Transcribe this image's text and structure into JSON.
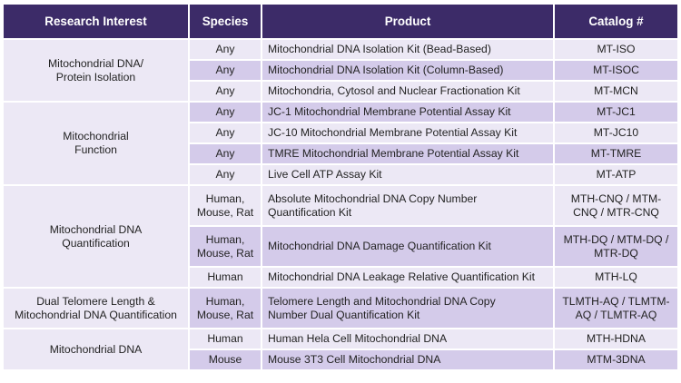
{
  "headers": {
    "research_interest": "Research Interest",
    "species": "Species",
    "product": "Product",
    "catalog": "Catalog #"
  },
  "groups": [
    {
      "name_line1": "Mitochondrial DNA/",
      "name_line2": "Protein Isolation",
      "rows": [
        {
          "species_line1": "Any",
          "species_line2": "",
          "product_line1": "Mitochondrial DNA Isolation Kit (Bead-Based)",
          "product_line2": "",
          "catalog_line1": "MT-ISO",
          "catalog_line2": ""
        },
        {
          "species_line1": "Any",
          "species_line2": "",
          "product_line1": "Mitochondrial DNA Isolation Kit (Column-Based)",
          "product_line2": "",
          "catalog_line1": "MT-ISOC",
          "catalog_line2": ""
        },
        {
          "species_line1": "Any",
          "species_line2": "",
          "product_line1": "Mitochondria, Cytosol and Nuclear Fractionation Kit",
          "product_line2": "",
          "catalog_line1": "MT-MCN",
          "catalog_line2": ""
        }
      ]
    },
    {
      "name_line1": "Mitochondrial",
      "name_line2": "Function",
      "rows": [
        {
          "species_line1": "Any",
          "species_line2": "",
          "product_line1": "JC-1 Mitochondrial Membrane Potential Assay Kit",
          "product_line2": "",
          "catalog_line1": "MT-JC1",
          "catalog_line2": ""
        },
        {
          "species_line1": "Any",
          "species_line2": "",
          "product_line1": "JC-10 Mitochondrial Membrane Potential Assay Kit",
          "product_line2": "",
          "catalog_line1": "MT-JC10",
          "catalog_line2": ""
        },
        {
          "species_line1": "Any",
          "species_line2": "",
          "product_line1": "TMRE Mitochondrial Membrane Potential Assay Kit",
          "product_line2": "",
          "catalog_line1": "MT-TMRE",
          "catalog_line2": ""
        },
        {
          "species_line1": "Any",
          "species_line2": "",
          "product_line1": "Live Cell ATP Assay Kit",
          "product_line2": "",
          "catalog_line1": "MT-ATP",
          "catalog_line2": ""
        }
      ]
    },
    {
      "name_line1": "Mitochondrial DNA",
      "name_line2": "Quantification",
      "rows": [
        {
          "species_line1": "Human,",
          "species_line2": "Mouse, Rat",
          "product_line1": "Absolute Mitochondrial DNA Copy Number",
          "product_line2": "Quantification Kit",
          "catalog_line1": "MTH-CNQ / MTM-",
          "catalog_line2": "CNQ / MTR-CNQ"
        },
        {
          "species_line1": "Human,",
          "species_line2": "Mouse, Rat",
          "product_line1": "Mitochondrial DNA Damage Quantification Kit",
          "product_line2": "",
          "catalog_line1": "MTH-DQ / MTM-DQ /",
          "catalog_line2": "MTR-DQ"
        },
        {
          "species_line1": "Human",
          "species_line2": "",
          "product_line1": "Mitochondrial DNA Leakage Relative Quantification Kit",
          "product_line2": "",
          "catalog_line1": "MTH-LQ",
          "catalog_line2": ""
        }
      ]
    },
    {
      "name_line1": "Dual Telomere Length &",
      "name_line2": "Mitochondrial DNA Quantification",
      "rows": [
        {
          "species_line1": "Human,",
          "species_line2": "Mouse, Rat",
          "product_line1": "Telomere Length and Mitochondrial DNA Copy",
          "product_line2": "Number Dual Quantification Kit",
          "catalog_line1": "TLMTH-AQ / TLMTM-",
          "catalog_line2": "AQ / TLMTR-AQ"
        }
      ]
    },
    {
      "name_line1": "Mitochondrial DNA",
      "name_line2": "",
      "rows": [
        {
          "species_line1": "Human",
          "species_line2": "",
          "product_line1": "Human Hela Cell Mitochondrial DNA",
          "product_line2": "",
          "catalog_line1": "MTH-HDNA",
          "catalog_line2": ""
        },
        {
          "species_line1": "Mouse",
          "species_line2": "",
          "product_line1": "Mouse 3T3 Cell Mitochondrial DNA",
          "product_line2": "",
          "catalog_line1": "MTM-3DNA",
          "catalog_line2": ""
        }
      ]
    }
  ]
}
